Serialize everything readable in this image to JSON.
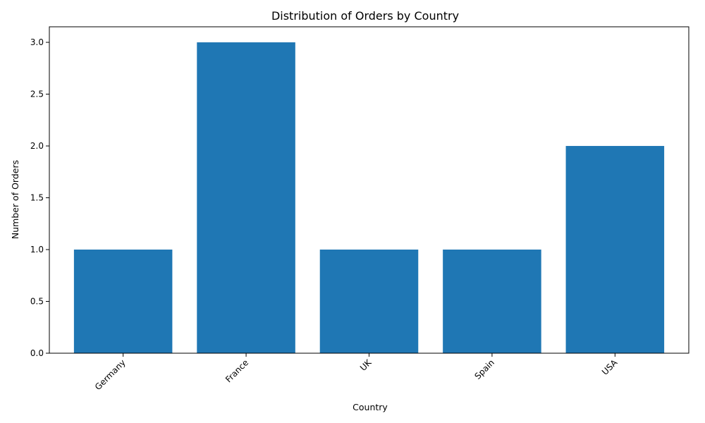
{
  "chart_data": {
    "type": "bar",
    "title": "Distribution of Orders by Country",
    "xlabel": "Country",
    "ylabel": "Number of Orders",
    "categories": [
      "Germany",
      "France",
      "UK",
      "Spain",
      "USA"
    ],
    "values": [
      1,
      3,
      1,
      1,
      2
    ],
    "ylim": [
      0,
      3.15
    ],
    "yticks": [
      "0.0",
      "0.5",
      "1.0",
      "1.5",
      "2.0",
      "2.5",
      "3.0"
    ],
    "bar_color": "#1f77b4",
    "grid": false
  }
}
